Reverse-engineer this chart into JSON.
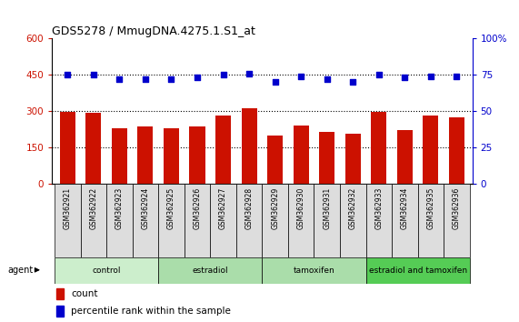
{
  "title": "GDS5278 / MmugDNA.4275.1.S1_at",
  "samples": [
    "GSM362921",
    "GSM362922",
    "GSM362923",
    "GSM362924",
    "GSM362925",
    "GSM362926",
    "GSM362927",
    "GSM362928",
    "GSM362929",
    "GSM362930",
    "GSM362931",
    "GSM362932",
    "GSM362933",
    "GSM362934",
    "GSM362935",
    "GSM362936"
  ],
  "counts": [
    298,
    292,
    228,
    235,
    230,
    237,
    280,
    310,
    200,
    240,
    212,
    205,
    297,
    222,
    283,
    275
  ],
  "percentiles": [
    75,
    75,
    72,
    72,
    72,
    73,
    75,
    76,
    70,
    74,
    72,
    70,
    75,
    73,
    74,
    74
  ],
  "bar_color": "#cc1100",
  "dot_color": "#0000cc",
  "ylim_left": [
    0,
    600
  ],
  "ylim_right": [
    0,
    100
  ],
  "yticks_left": [
    0,
    150,
    300,
    450,
    600
  ],
  "yticks_right": [
    0,
    25,
    50,
    75,
    100
  ],
  "groups": [
    {
      "label": "control",
      "start": 0,
      "end": 4,
      "color": "#cceecc"
    },
    {
      "label": "estradiol",
      "start": 4,
      "end": 8,
      "color": "#aaddaa"
    },
    {
      "label": "tamoxifen",
      "start": 8,
      "end": 12,
      "color": "#aaddaa"
    },
    {
      "label": "estradiol and tamoxifen",
      "start": 12,
      "end": 16,
      "color": "#55cc55"
    }
  ],
  "group_label": "agent",
  "legend_count_label": "count",
  "legend_pct_label": "percentile rank within the sample",
  "tick_color_left": "#cc1100",
  "tick_color_right": "#0000cc",
  "dotted_line_color": "#000000",
  "label_bg_color": "#dddddd"
}
